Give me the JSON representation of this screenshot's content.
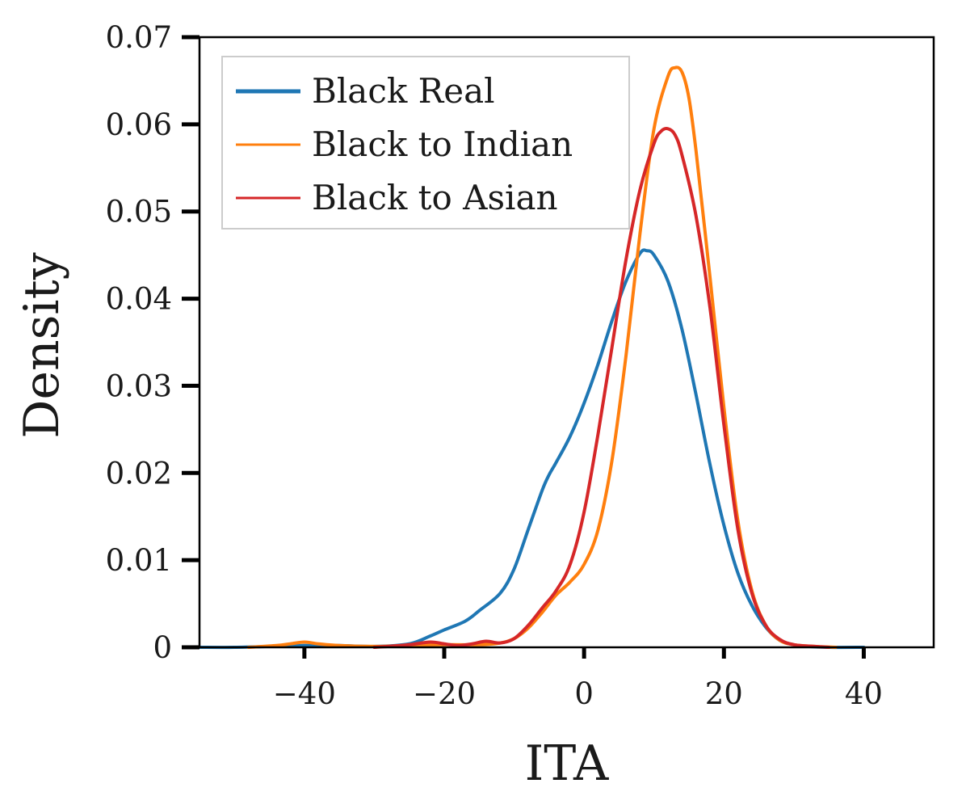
{
  "chart_data": {
    "type": "line",
    "title": "",
    "xlabel": "ITA",
    "ylabel": "Density",
    "xlim": [
      -55,
      50
    ],
    "ylim": [
      0,
      0.07
    ],
    "xticks": [
      -40,
      -20,
      0,
      20,
      40
    ],
    "xtick_labels": [
      "−40",
      "−20",
      "0",
      "20",
      "40"
    ],
    "yticks": [
      0,
      0.01,
      0.02,
      0.03,
      0.04,
      0.05,
      0.06,
      0.07
    ],
    "ytick_labels": [
      "0",
      "0.01",
      "0.02",
      "0.03",
      "0.04",
      "0.05",
      "0.06",
      "0.07"
    ],
    "grid": false,
    "legend_position": "top-left",
    "series": [
      {
        "name": "Black Real",
        "color": "#1f77b4",
        "x": [
          -55,
          -50,
          -45,
          -40,
          -35,
          -30,
          -25,
          -22,
          -20,
          -17,
          -15,
          -12,
          -10,
          -8,
          -6,
          -5,
          -4,
          -2,
          0,
          2,
          4,
          6,
          8,
          9,
          10,
          12,
          14,
          16,
          18,
          20,
          22,
          24,
          26,
          28,
          30,
          32,
          35,
          40
        ],
        "y": [
          0,
          0,
          0.0001,
          0.0002,
          0.0002,
          0.0001,
          0.0004,
          0.0013,
          0.002,
          0.003,
          0.0042,
          0.0062,
          0.009,
          0.0135,
          0.018,
          0.0198,
          0.0212,
          0.0242,
          0.028,
          0.0325,
          0.0375,
          0.042,
          0.0452,
          0.0455,
          0.045,
          0.042,
          0.0365,
          0.029,
          0.021,
          0.014,
          0.0085,
          0.0048,
          0.0023,
          0.0008,
          0.0003,
          0.0001,
          0,
          0
        ]
      },
      {
        "name": "Black to Indian",
        "color": "#ff7f0e",
        "x": [
          -48,
          -44,
          -42,
          -40,
          -38,
          -35,
          -30,
          -25,
          -20,
          -15,
          -12,
          -10,
          -8,
          -6,
          -4,
          -2,
          0,
          2,
          4,
          6,
          8,
          10,
          12,
          13,
          14,
          15,
          16,
          18,
          20,
          22,
          24,
          26,
          28,
          30,
          33,
          36
        ],
        "y": [
          0,
          0.0002,
          0.0004,
          0.0006,
          0.0004,
          0.0002,
          0.0001,
          0.0002,
          0.0003,
          0.0003,
          0.0005,
          0.001,
          0.0022,
          0.004,
          0.006,
          0.0075,
          0.0095,
          0.0135,
          0.0215,
          0.0335,
          0.0475,
          0.0595,
          0.0655,
          0.0665,
          0.066,
          0.063,
          0.057,
          0.0425,
          0.0275,
          0.0145,
          0.0065,
          0.0025,
          0.0008,
          0.0003,
          0.0001,
          0
        ]
      },
      {
        "name": "Black to Asian",
        "color": "#d62728",
        "x": [
          -30,
          -28,
          -25,
          -22,
          -20,
          -18,
          -16,
          -14,
          -12,
          -10,
          -8,
          -6,
          -4,
          -2,
          0,
          2,
          4,
          6,
          8,
          10,
          11,
          12,
          13,
          14,
          16,
          18,
          20,
          22,
          24,
          26,
          28,
          30,
          33,
          35
        ],
        "y": [
          0,
          0.0001,
          0.0003,
          0.0006,
          0.0004,
          0.0002,
          0.0004,
          0.0007,
          0.0005,
          0.001,
          0.0025,
          0.0045,
          0.0065,
          0.0095,
          0.0155,
          0.0245,
          0.0345,
          0.0445,
          0.0525,
          0.0578,
          0.0592,
          0.0595,
          0.0588,
          0.0565,
          0.0495,
          0.039,
          0.0255,
          0.0135,
          0.0062,
          0.0025,
          0.0009,
          0.0003,
          0.0001,
          0
        ]
      }
    ]
  }
}
